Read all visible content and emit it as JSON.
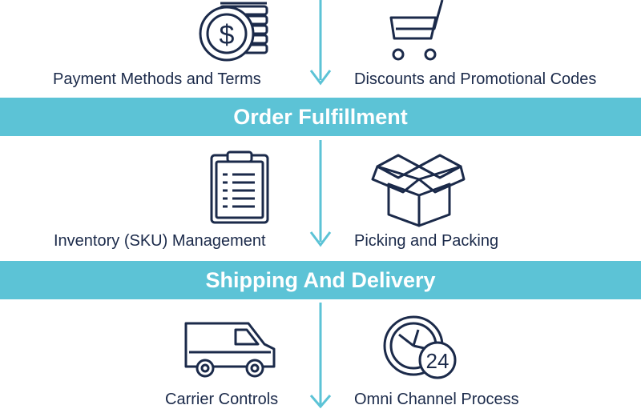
{
  "colors": {
    "band": "#5cc3d6",
    "icon_stroke": "#1b2a4a",
    "arrow": "#5cc3d6",
    "text": "#1b2a4a"
  },
  "sections": [
    {
      "left": {
        "label": "Payment Methods and Terms",
        "icon": "coin-stack-dollar-icon"
      },
      "right": {
        "label": "Discounts and Promotional Codes",
        "icon": "shopping-cart-icon"
      }
    },
    {
      "band": "Order Fulfillment",
      "left": {
        "label": "Inventory (SKU) Management",
        "icon": "clipboard-icon"
      },
      "right": {
        "label": "Picking and Packing",
        "icon": "open-box-icon"
      }
    },
    {
      "band": "Shipping And Delivery",
      "left": {
        "label": "Carrier Controls",
        "icon": "delivery-van-icon"
      },
      "right": {
        "label": "Omni Channel Process",
        "icon": "clock-24-icon"
      }
    }
  ],
  "clock_badge": "24"
}
